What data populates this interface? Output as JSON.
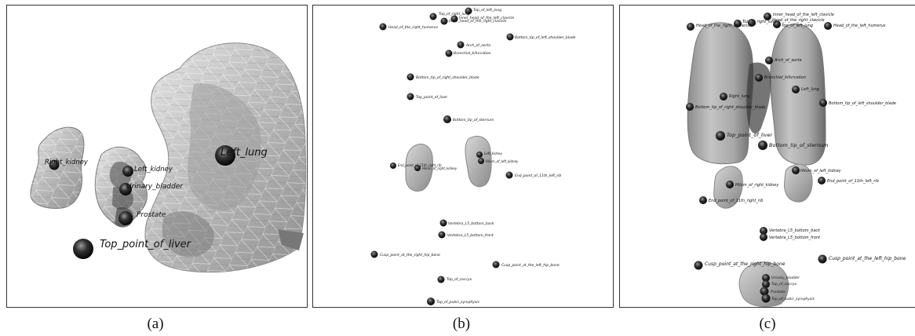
{
  "captions": {
    "a": "(a)",
    "b": "(b)",
    "c": "(c)"
  },
  "panel_a": {
    "labels": [
      "Left_lung",
      "Right_kidney",
      "Left_kidney",
      "Urinary_bladder",
      "Prostate",
      "Top_point_of_liver"
    ]
  },
  "panel_b": {
    "labels": [
      "Top_of_left_lung",
      "Top_of_right_lung",
      "Inner_head_of_the_left_clavicle",
      "Inner_head_of_the_right_clavicle",
      "Head_of_the_right_humerus",
      "Arch_of_aorta",
      "Bottom_tip_of_left_shoulder_blade",
      "Bronchial_bifurcation",
      "Bottom_tip_of_right_shoulder_blade",
      "Top_point_of_liver",
      "Bottom_tip_of_sternum",
      "Left_kidney",
      "Hilum_of_left_kidney",
      "End_point_of_11th_right_rib",
      "Hilum_of_right_kidney",
      "End_point_of_11th_left_rib",
      "Vertebra_L5_bottom_back",
      "Vertebra_L5_bottom_front",
      "Cusp_point_at_the_right_hip_bone",
      "Cusp_point_at_the_left_hip_bone",
      "Top_of_coccyx",
      "Top_of_pubic_symphysis"
    ]
  },
  "panel_c": {
    "labels": [
      "Head_of_the_right_humerus",
      "Top_of_right_lung",
      "Inner_head_of_the_left_clavicle",
      "Head_of_the_right_clavicle",
      "Top_of_left_lung",
      "Head_of_the_left_humerus",
      "Arch_of_aorta",
      "Bronchial_bifurcation",
      "Left_lung",
      "Right_lung",
      "Bottom_tip_of_right_shoulder_blade",
      "Bottom_tip_of_left_shoulder_blade",
      "Top_point_of_liver",
      "Bottom_tip_of_sternum",
      "Hilum_of_left_kidney",
      "Hilum_of_right_kidney",
      "End_point_of_11th_left_rib",
      "End_point_of_11th_right_rib",
      "Vertebra_L5_bottom_back",
      "Vertebra_L5_bottom_front",
      "Cusp_point_at_the_right_hip_bone",
      "Cusp_point_at_the_left_hip_bone",
      "Urinary_bladder",
      "Top_of_coccyx",
      "Prostate",
      "Top_of_pubic_symphysis"
    ]
  }
}
